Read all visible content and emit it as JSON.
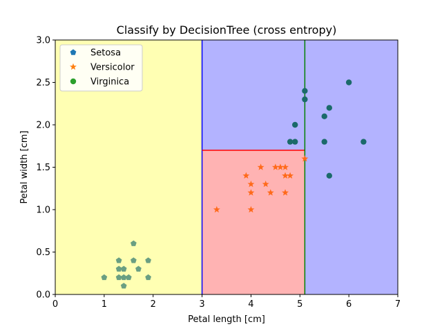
{
  "chart_data": {
    "type": "scatter",
    "title": "Classify by DecisionTree (cross entropy)",
    "xlabel": "Petal length [cm]",
    "ylabel": "Petal width [cm]",
    "xlim": [
      0,
      7
    ],
    "ylim": [
      0,
      3
    ],
    "xticks": [
      "0",
      "1",
      "2",
      "3",
      "4",
      "5",
      "6",
      "7"
    ],
    "yticks": [
      "0.0",
      "0.5",
      "1.0",
      "1.5",
      "2.0",
      "2.5",
      "3.0"
    ],
    "legend_position": "top-left",
    "regions": [
      {
        "class": "Setosa",
        "x": [
          0,
          3.0
        ],
        "y": [
          0,
          3
        ],
        "color": "#ffffb3"
      },
      {
        "class": "Versicolor",
        "x": [
          3.0,
          5.1
        ],
        "y": [
          0,
          1.7
        ],
        "color": "#ffb3b3"
      },
      {
        "class": "Virginica",
        "x": [
          3.0,
          5.1
        ],
        "y": [
          1.7,
          3
        ],
        "color": "#b3b3ff"
      },
      {
        "class": "Virginica",
        "x": [
          5.1,
          7
        ],
        "y": [
          0,
          3
        ],
        "color": "#b3b3ff"
      }
    ],
    "boundaries": [
      {
        "axis": "x",
        "value": 3.0,
        "from": 0,
        "to": 3,
        "color": "#0000ff"
      },
      {
        "axis": "y",
        "value": 1.7,
        "from": 3.0,
        "to": 5.1,
        "color": "#ff0000"
      },
      {
        "axis": "x",
        "value": 5.1,
        "from": 0,
        "to": 3,
        "color": "#008000"
      }
    ],
    "series": [
      {
        "name": "Setosa",
        "marker": "pentagon",
        "color": "#1f77b4",
        "display_color": "#6a9f82",
        "points": [
          [
            1.0,
            0.2
          ],
          [
            1.3,
            0.2
          ],
          [
            1.3,
            0.3
          ],
          [
            1.3,
            0.4
          ],
          [
            1.4,
            0.1
          ],
          [
            1.4,
            0.2
          ],
          [
            1.4,
            0.3
          ],
          [
            1.5,
            0.2
          ],
          [
            1.6,
            0.6
          ],
          [
            1.6,
            0.4
          ],
          [
            1.7,
            0.3
          ],
          [
            1.9,
            0.4
          ],
          [
            1.9,
            0.2
          ]
        ]
      },
      {
        "name": "Versicolor",
        "marker": "star",
        "color": "#ff7f0e",
        "display_color": "#ff6a1a",
        "points": [
          [
            3.3,
            1.0
          ],
          [
            3.9,
            1.4
          ],
          [
            4.0,
            1.3
          ],
          [
            4.0,
            1.2
          ],
          [
            4.0,
            1.0
          ],
          [
            4.2,
            1.5
          ],
          [
            4.3,
            1.3
          ],
          [
            4.4,
            1.2
          ],
          [
            4.5,
            1.5
          ],
          [
            4.6,
            1.5
          ],
          [
            4.7,
            1.5
          ],
          [
            4.7,
            1.4
          ],
          [
            4.7,
            1.2
          ],
          [
            4.8,
            1.4
          ],
          [
            5.1,
            1.6
          ]
        ]
      },
      {
        "name": "Virginica",
        "marker": "circle",
        "color": "#2ca02c",
        "display_color": "#1b6a6a",
        "points": [
          [
            4.8,
            1.8
          ],
          [
            4.9,
            2.0
          ],
          [
            4.9,
            1.8
          ],
          [
            5.1,
            2.4
          ],
          [
            5.1,
            2.3
          ],
          [
            5.5,
            2.1
          ],
          [
            5.5,
            1.8
          ],
          [
            5.6,
            2.2
          ],
          [
            5.6,
            1.4
          ],
          [
            6.0,
            2.5
          ],
          [
            6.3,
            1.8
          ]
        ]
      }
    ]
  }
}
